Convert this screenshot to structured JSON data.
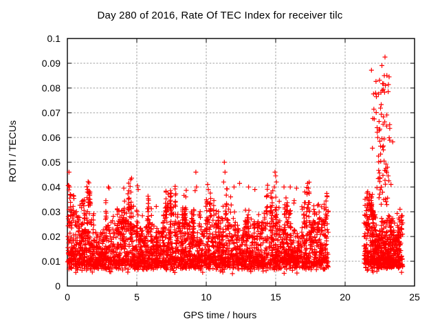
{
  "chart_data": {
    "type": "scatter",
    "title": "Day 280 of 2016, Rate Of TEC Index for receiver tilc",
    "xlabel": "GPS time / hours",
    "ylabel": "ROTI / TECUs",
    "xlim": [
      0,
      25
    ],
    "ylim": [
      0,
      0.1
    ],
    "xticks": {
      "values": [
        0,
        5,
        10,
        15,
        20,
        25
      ],
      "labels": [
        "0",
        "5",
        "10",
        "15",
        "20",
        "25"
      ]
    },
    "yticks": {
      "values": [
        0,
        0.01,
        0.02,
        0.03,
        0.04,
        0.05,
        0.06,
        0.07,
        0.08,
        0.09,
        0.1
      ],
      "labels": [
        "0",
        "0.01",
        "0.02",
        "0.03",
        "0.04",
        "0.05",
        "0.06",
        "0.07",
        "0.08",
        "0.09",
        "0.1"
      ]
    },
    "grid": "dashed",
    "legend": "none",
    "marker": {
      "shape": "plus",
      "size": 7,
      "color": "#ff0000"
    },
    "series": [
      {
        "name": "ROTI",
        "description": "Rate of TEC index vs GPS time; dense noisy band 0-18.8h (core 0.007-0.03, spikes to 0.05), no data 18.8-21.35h and 24.2-25h, late cluster 21.35-24.2h (core 0.007-0.035) with enhancement plume 22.0-23.3h reaching 0.093",
        "segments": [
          {
            "x_start": 0.0,
            "x_end": 18.8,
            "n_points": 3400,
            "y_base": 0.0065,
            "y_jitter": 0.004,
            "y_tail": 0.022,
            "tail_power": 2.2,
            "spike_prob": 0.05,
            "spike_height": 0.016,
            "y_max": 0.0445,
            "low_straggler_prob": 0.012
          },
          {
            "x_start": 21.35,
            "x_end": 24.15,
            "n_points": 680,
            "y_base": 0.007,
            "y_jitter": 0.004,
            "y_tail": 0.024,
            "tail_power": 2.1,
            "spike_prob": 0.035,
            "spike_height": 0.013,
            "y_max": 0.045,
            "low_straggler_prob": 0.008,
            "plume": {
              "center": 22.65,
              "sigma": 0.4,
              "prob": 0.3,
              "y_min": 0.033,
              "y_span": 0.058,
              "power": 1.7,
              "y_max": 0.091
            }
          }
        ],
        "no_data_intervals": [
          [
            18.8,
            21.35
          ],
          [
            24.15,
            25.0
          ]
        ],
        "notable_points": [
          [
            0.12,
            0.046
          ],
          [
            0.15,
            0.04
          ],
          [
            0.18,
            0.0355
          ],
          [
            2.95,
            0.04
          ],
          [
            3.0,
            0.0395
          ],
          [
            5.05,
            0.0405
          ],
          [
            5.1,
            0.039
          ],
          [
            9.25,
            0.046
          ],
          [
            9.3,
            0.04
          ],
          [
            9.2,
            0.0385
          ],
          [
            10.1,
            0.041
          ],
          [
            10.15,
            0.039
          ],
          [
            11.3,
            0.05
          ],
          [
            11.35,
            0.046
          ],
          [
            11.25,
            0.042
          ],
          [
            12.0,
            0.04
          ],
          [
            12.4,
            0.0415
          ],
          [
            13.05,
            0.04
          ],
          [
            13.5,
            0.039
          ],
          [
            14.95,
            0.046
          ],
          [
            15.0,
            0.0445
          ],
          [
            15.05,
            0.042
          ],
          [
            14.9,
            0.04
          ],
          [
            15.6,
            0.04
          ],
          [
            16.05,
            0.04
          ],
          [
            16.5,
            0.0395
          ],
          [
            17.3,
            0.0415
          ],
          [
            17.35,
            0.0395
          ],
          [
            22.87,
            0.0925
          ],
          [
            22.82,
            0.085
          ],
          [
            23.17,
            0.0845
          ],
          [
            22.77,
            0.0817
          ],
          [
            23.12,
            0.0814
          ],
          [
            22.7,
            0.079
          ],
          [
            23.1,
            0.0785
          ],
          [
            22.2,
            0.078
          ],
          [
            22.25,
            0.0765
          ],
          [
            22.6,
            0.0733
          ],
          [
            22.55,
            0.0719
          ],
          [
            22.6,
            0.0694
          ],
          [
            23.0,
            0.0691
          ],
          [
            22.85,
            0.0663
          ],
          [
            22.1,
            0.0675
          ],
          [
            22.3,
            0.064
          ],
          [
            22.45,
            0.0628
          ],
          [
            22.35,
            0.06
          ],
          [
            22.5,
            0.0585
          ],
          [
            22.55,
            0.0565
          ],
          [
            22.75,
            0.055
          ],
          [
            22.4,
            0.0525
          ],
          [
            22.8,
            0.0505
          ],
          [
            23.05,
            0.048
          ],
          [
            22.95,
            0.0465
          ],
          [
            23.1,
            0.0445
          ],
          [
            23.15,
            0.0425
          ],
          [
            23.3,
            0.041
          ]
        ]
      }
    ],
    "colors": {
      "marker": "#ff0000",
      "grid": "#9e9e9e",
      "border": "#000000",
      "text": "#000000",
      "background": "#ffffff"
    }
  }
}
